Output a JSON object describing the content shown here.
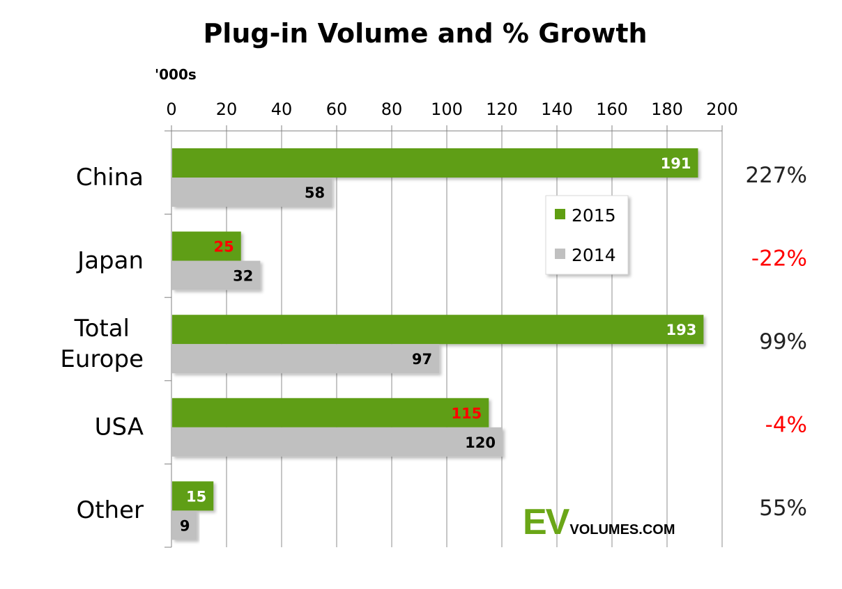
{
  "chart_data": {
    "type": "bar",
    "orientation": "horizontal",
    "title": "Plug-in Volume and % Growth",
    "unit_label": "'000s",
    "categories": [
      "China",
      "Japan",
      "Total Europe",
      "USA",
      "Other"
    ],
    "category_lines": [
      [
        "China"
      ],
      [
        "Japan"
      ],
      [
        "Total",
        "Europe"
      ],
      [
        "USA"
      ],
      [
        "Other"
      ]
    ],
    "series": [
      {
        "name": "2015",
        "values": [
          191,
          25,
          193,
          115,
          15
        ],
        "color": "#5f9e12",
        "label_colors": [
          "#ffffff",
          "#ff0000",
          "#ffffff",
          "#ff0000",
          "#ffffff"
        ]
      },
      {
        "name": "2014",
        "values": [
          58,
          32,
          97,
          120,
          9
        ],
        "color": "#c0c0c0",
        "label_colors": [
          "#000000",
          "#000000",
          "#000000",
          "#000000",
          "#000000"
        ]
      }
    ],
    "growth": [
      "227%",
      "-22%",
      "99%",
      "-4%",
      "55%"
    ],
    "growth_colors": [
      "#222222",
      "#ff0000",
      "#222222",
      "#ff0000",
      "#222222"
    ],
    "xlim": [
      0,
      200
    ],
    "xticks": [
      0,
      20,
      40,
      60,
      80,
      100,
      120,
      140,
      160,
      180,
      200
    ],
    "grid": true,
    "legend_position": "center-right"
  },
  "logo": {
    "ev": "EV",
    "rest": "VOLUMES.COM"
  }
}
